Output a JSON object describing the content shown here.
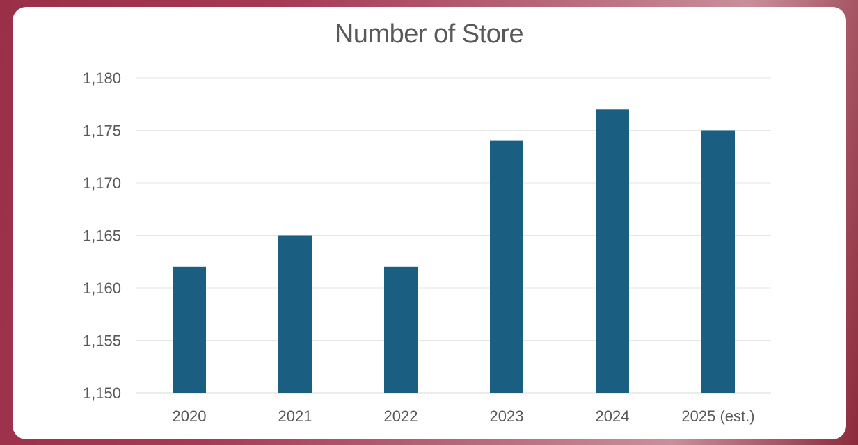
{
  "chart_data": {
    "type": "bar",
    "title": "Number of Store",
    "categories": [
      "2020",
      "2021",
      "2022",
      "2023",
      "2024",
      "2025 (est.)"
    ],
    "values": [
      1162,
      1165,
      1162,
      1174,
      1177,
      1175
    ],
    "ylim": [
      1150,
      1180
    ],
    "yticks": [
      1150,
      1155,
      1160,
      1165,
      1170,
      1175,
      1180
    ],
    "ytick_labels": [
      "1,150",
      "1,155",
      "1,160",
      "1,165",
      "1,170",
      "1,175",
      "1,180"
    ],
    "xlabel": "",
    "ylabel": "",
    "grid": true,
    "bar_color": "#1a5f82",
    "grid_color": "#e6e6e6"
  }
}
